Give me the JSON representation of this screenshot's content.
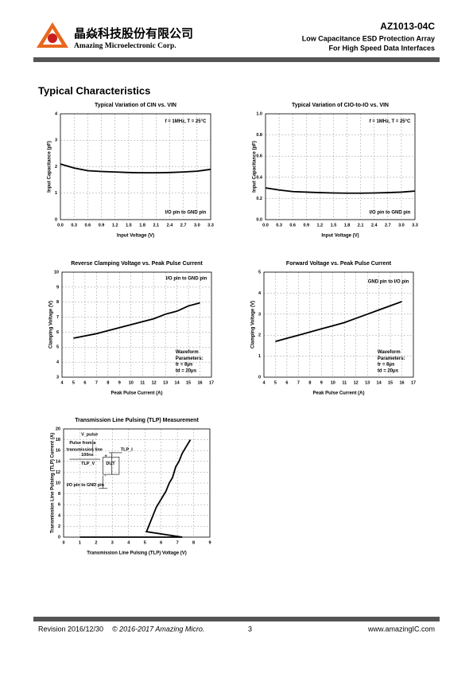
{
  "header": {
    "company_cn": "晶焱科技股份有限公司",
    "company_en": "Amazing Microelectronic Corp.",
    "part": "AZ1013-04C",
    "subtitle1": "Low Capacitance ESD Protection Array",
    "subtitle2": "For High Speed Data Interfaces"
  },
  "section_title": "Typical Characteristics",
  "chart_data": [
    {
      "type": "line",
      "title": "Typical Variation of CIN vs. VIN",
      "xlabel": "Input Voltage (V)",
      "ylabel": "Input Capacitance (pF)",
      "color": "#000000",
      "grid": true,
      "x": [
        0,
        0.3,
        0.6,
        0.9,
        1.2,
        1.5,
        1.8,
        2.1,
        2.4,
        2.7,
        3.0,
        3.3
      ],
      "values": [
        2.1,
        1.95,
        1.85,
        1.82,
        1.8,
        1.78,
        1.77,
        1.77,
        1.78,
        1.8,
        1.83,
        1.9
      ],
      "xlim": [
        0,
        3.3
      ],
      "xticks": [
        {
          "value": 0,
          "label": "0.0"
        },
        0.3,
        0.6,
        0.9,
        1.2,
        1.5,
        1.8,
        2.1,
        2.4,
        2.7,
        {
          "value": 3,
          "label": "3.0"
        },
        3.3
      ],
      "ylim": [
        0,
        4
      ],
      "yticks": [
        0,
        1,
        2,
        3,
        4
      ],
      "annotations": [
        "f = 1MHz, T = 25°C",
        "I/O pin to GND pin"
      ]
    },
    {
      "type": "line",
      "title": "Typical Variation of CIO-to-IO vs. VIN",
      "xlabel": "Input Voltage (V)",
      "ylabel": "Input Capacitance (pF)",
      "color": "#000000",
      "grid": true,
      "x": [
        0,
        0.3,
        0.6,
        0.9,
        1.2,
        1.5,
        1.8,
        2.1,
        2.4,
        2.7,
        3.0,
        3.3
      ],
      "values": [
        0.3,
        0.28,
        0.265,
        0.26,
        0.255,
        0.252,
        0.25,
        0.25,
        0.252,
        0.255,
        0.26,
        0.27
      ],
      "xlim": [
        0,
        3.3
      ],
      "xticks": [
        {
          "value": 0,
          "label": "0.0"
        },
        0.3,
        0.6,
        0.9,
        1.2,
        1.5,
        1.8,
        2.1,
        2.4,
        2.7,
        {
          "value": 3,
          "label": "3.0"
        },
        3.3
      ],
      "ylim": [
        0,
        1
      ],
      "yticks": [
        {
          "value": 0,
          "label": "0.0"
        },
        0.2,
        0.4,
        0.6,
        0.8,
        {
          "value": 1,
          "label": "1.0"
        }
      ],
      "annotations": [
        "f = 1MHz, T = 25°C",
        "I/O pin to GND pin"
      ]
    },
    {
      "type": "line",
      "title": "Reverse Clamping Voltage vs. Peak Pulse Current",
      "xlabel": "Peak Pulse Current (A)",
      "ylabel": "Clamping Voltage (V)",
      "color": "#000000",
      "grid": true,
      "x": [
        5,
        6,
        7,
        8,
        9,
        10,
        11,
        12,
        13,
        14,
        15,
        16
      ],
      "values": [
        5.6,
        5.75,
        5.9,
        6.1,
        6.3,
        6.5,
        6.7,
        6.9,
        7.2,
        7.4,
        7.75,
        7.95
      ],
      "xlim": [
        4,
        17
      ],
      "xticks": [
        4,
        5,
        6,
        7,
        8,
        9,
        10,
        11,
        12,
        13,
        14,
        15,
        16,
        17
      ],
      "ylim": [
        3,
        10
      ],
      "yticks": [
        3,
        4,
        5,
        6,
        7,
        8,
        9,
        10
      ],
      "annotations": [
        "I/O pin to GND pin",
        "Waveform",
        "Parameters:",
        "tr = 8μs",
        "td = 20μs"
      ]
    },
    {
      "type": "line",
      "title": "Forward Voltage vs. Peak Pulse Current",
      "xlabel": "Peak Pulse Current (A)",
      "ylabel": "Clamping Voltage (V)",
      "color": "#000000",
      "grid": true,
      "x": [
        5,
        6,
        7,
        8,
        9,
        10,
        11,
        12,
        13,
        14,
        15,
        16
      ],
      "values": [
        1.7,
        1.85,
        2.0,
        2.15,
        2.3,
        2.45,
        2.6,
        2.8,
        3.0,
        3.2,
        3.4,
        3.6
      ],
      "xlim": [
        4,
        17
      ],
      "xticks": [
        4,
        5,
        6,
        7,
        8,
        9,
        10,
        11,
        12,
        13,
        14,
        15,
        16,
        17
      ],
      "ylim": [
        0,
        5
      ],
      "yticks": [
        0,
        1,
        2,
        3,
        4,
        5
      ],
      "annotations": [
        "GND pin to I/O pin",
        "Waveform",
        "Parameters:",
        "tr = 8μs",
        "td = 20μs"
      ]
    },
    {
      "type": "line",
      "title": "Transmission Line Pulsing (TLP) Measurement",
      "xlabel": "Transmission Line Pulsing (TLP) Voltage (V)",
      "ylabel": "Transmission Line Pulsing (TLP) Current (A)",
      "color": "#000000",
      "grid": true,
      "x": [
        1,
        7.3,
        5.1,
        5.3,
        5.5,
        5.7,
        5.9,
        6.1,
        6.3,
        6.5,
        6.7,
        6.9,
        7.1,
        7.3,
        7.5,
        7.8
      ],
      "values": [
        0,
        0,
        1,
        2.5,
        4,
        5.5,
        6.5,
        7.5,
        8.5,
        10,
        11,
        13,
        14,
        15.5,
        16.5,
        18
      ],
      "xlim": [
        0,
        9
      ],
      "xticks": [
        0,
        1,
        2,
        3,
        4,
        5,
        6,
        7,
        8,
        9
      ],
      "ylim": [
        0,
        20
      ],
      "yticks": [
        0,
        2,
        4,
        6,
        8,
        10,
        12,
        14,
        16,
        18,
        20
      ],
      "annotations": [
        "V_pulse",
        "Pulse from a",
        "transmission line",
        "100ns",
        "TLP_I",
        "TLP_V",
        "DUT",
        "+",
        "-",
        "I/O pin to GND pin"
      ]
    }
  ],
  "footer": {
    "revision": "Revision 2016/12/30",
    "copyright": "© 2016-2017 Amazing Micro.",
    "page": "3",
    "website": "www.amazingIC.com"
  }
}
